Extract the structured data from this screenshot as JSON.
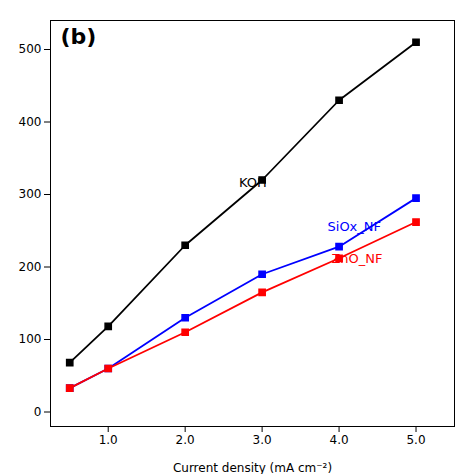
{
  "chart_data": {
    "type": "line",
    "xlabel": "Current density (mA cm⁻²)",
    "x": [
      0.5,
      1.0,
      2.0,
      3.0,
      4.0,
      5.0
    ],
    "xlim": [
      0.25,
      5.5
    ],
    "xticks": [
      1,
      2,
      3,
      4,
      5
    ],
    "ylim": [
      -20,
      540
    ],
    "yticks": [
      0,
      100,
      200,
      300,
      400,
      500
    ],
    "grid": false,
    "series": [
      {
        "name": "KOH",
        "color": "#000000",
        "marker": "square",
        "values": [
          68,
          118,
          230,
          320,
          430,
          510
        ],
        "label_x": 2.7,
        "label_y": 310
      },
      {
        "name": "SiOx_NF",
        "color": "#0000ff",
        "marker": "square",
        "values": [
          33,
          60,
          130,
          190,
          228,
          295
        ],
        "label_x": 3.85,
        "label_y": 250
      },
      {
        "name": "ZnO_NF",
        "color": "#ff0000",
        "marker": "square",
        "values": [
          33,
          60,
          110,
          165,
          212,
          262
        ],
        "label_x": 3.9,
        "label_y": 218
      }
    ],
    "annotations": [
      {
        "text": "(b)"
      }
    ]
  }
}
